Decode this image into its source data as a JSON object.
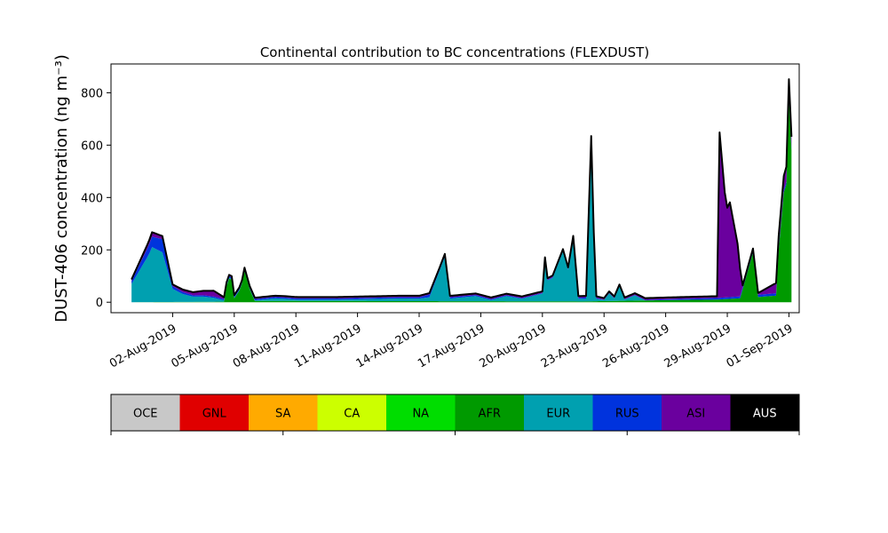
{
  "chart_data": {
    "type": "area",
    "title": "Continental contribution to BC concentrations (FLEXDUST)",
    "ylabel": "DUST-406 concentration (ng m⁻³)",
    "xlabel": "",
    "xlim": [
      "2019-07-30",
      "2019-09-01T12:00"
    ],
    "ylim": [
      -40,
      910
    ],
    "y_ticks": [
      0,
      200,
      400,
      600,
      800
    ],
    "x_ticks": [
      "2019-08-02",
      "2019-08-05",
      "2019-08-08",
      "2019-08-11",
      "2019-08-14",
      "2019-08-17",
      "2019-08-20",
      "2019-08-23",
      "2019-08-26",
      "2019-08-29",
      "2019-09-01"
    ],
    "x_tick_labels": [
      "02-Aug-2019",
      "05-Aug-2019",
      "08-Aug-2019",
      "11-Aug-2019",
      "14-Aug-2019",
      "17-Aug-2019",
      "20-Aug-2019",
      "23-Aug-2019",
      "26-Aug-2019",
      "29-Aug-2019",
      "01-Sep-2019"
    ],
    "stack_order": [
      "OCE",
      "GNL",
      "SA",
      "CA",
      "NA",
      "AFR",
      "EUR",
      "RUS",
      "ASI",
      "AUS"
    ],
    "series": [
      {
        "name": "AFR",
        "color": "#009a00",
        "points": [
          [
            "2019-07-31",
            0
          ],
          [
            "2019-08-04T12",
            2
          ],
          [
            "2019-08-04T15",
            60
          ],
          [
            "2019-08-04T20",
            110
          ],
          [
            "2019-08-05T00",
            15
          ],
          [
            "2019-08-05T08",
            55
          ],
          [
            "2019-08-05T12",
            120
          ],
          [
            "2019-08-05T18",
            50
          ],
          [
            "2019-08-06",
            5
          ],
          [
            "2019-08-22",
            3
          ],
          [
            "2019-08-26",
            8
          ],
          [
            "2019-08-28T12",
            10
          ],
          [
            "2019-08-29T15",
            15
          ],
          [
            "2019-08-30T06",
            190
          ],
          [
            "2019-08-30T12",
            20
          ],
          [
            "2019-08-31T09",
            25
          ],
          [
            "2019-08-31T12",
            200
          ],
          [
            "2019-08-31T18",
            420
          ],
          [
            "2019-08-31T21",
            450
          ],
          [
            "2019-09-01",
            780
          ],
          [
            "2019-09-01T03",
            580
          ]
        ]
      },
      {
        "name": "EUR",
        "color": "#00a0b0",
        "points": [
          [
            "2019-07-31",
            70
          ],
          [
            "2019-07-31T20",
            180
          ],
          [
            "2019-08-01",
            210
          ],
          [
            "2019-08-01T12",
            190
          ],
          [
            "2019-08-02",
            50
          ],
          [
            "2019-08-02T12",
            30
          ],
          [
            "2019-08-03",
            20
          ],
          [
            "2019-08-03T12",
            20
          ],
          [
            "2019-08-04",
            15
          ],
          [
            "2019-08-04T12",
            5
          ],
          [
            "2019-08-05",
            2
          ],
          [
            "2019-08-06",
            2
          ],
          [
            "2019-08-07",
            10
          ],
          [
            "2019-08-07T12",
            8
          ],
          [
            "2019-08-08",
            5
          ],
          [
            "2019-08-10",
            5
          ],
          [
            "2019-08-13",
            10
          ],
          [
            "2019-08-14",
            10
          ],
          [
            "2019-08-14T12",
            15
          ],
          [
            "2019-08-15T06",
            170
          ],
          [
            "2019-08-15T12",
            10
          ],
          [
            "2019-08-16T18",
            20
          ],
          [
            "2019-08-17T12",
            5
          ],
          [
            "2019-08-18T06",
            20
          ],
          [
            "2019-08-19",
            10
          ],
          [
            "2019-08-20",
            30
          ],
          [
            "2019-08-20T03",
            160
          ],
          [
            "2019-08-20T06",
            80
          ],
          [
            "2019-08-20T12",
            90
          ],
          [
            "2019-08-21",
            190
          ],
          [
            "2019-08-21T06",
            120
          ],
          [
            "2019-08-21T12",
            240
          ],
          [
            "2019-08-21T18",
            10
          ],
          [
            "2019-08-22T03",
            10
          ],
          [
            "2019-08-22T09",
            620
          ],
          [
            "2019-08-22T14",
            10
          ],
          [
            "2019-08-23",
            5
          ],
          [
            "2019-08-23T06",
            30
          ],
          [
            "2019-08-23T12",
            10
          ],
          [
            "2019-08-23T18",
            55
          ],
          [
            "2019-08-24",
            5
          ],
          [
            "2019-08-24T12",
            20
          ],
          [
            "2019-08-25",
            0
          ],
          [
            "2019-09-01T06",
            0
          ]
        ]
      },
      {
        "name": "RUS",
        "color": "#0033dd",
        "points": [
          [
            "2019-07-31",
            10
          ],
          [
            "2019-08-01",
            40
          ],
          [
            "2019-08-01T12",
            50
          ],
          [
            "2019-08-02",
            10
          ],
          [
            "2019-08-03",
            5
          ],
          [
            "2019-08-14",
            5
          ],
          [
            "2019-08-14T12",
            10
          ],
          [
            "2019-08-15",
            5
          ],
          [
            "2019-08-20",
            2
          ],
          [
            "2019-08-22T09",
            5
          ],
          [
            "2019-08-23",
            0
          ],
          [
            "2019-09-01",
            10
          ]
        ]
      },
      {
        "name": "ASI",
        "color": "#6a009e",
        "points": [
          [
            "2019-07-31",
            5
          ],
          [
            "2019-08-01",
            15
          ],
          [
            "2019-08-02",
            5
          ],
          [
            "2019-08-03",
            10
          ],
          [
            "2019-08-03T12",
            15
          ],
          [
            "2019-08-04",
            20
          ],
          [
            "2019-08-04T12",
            5
          ],
          [
            "2019-08-05",
            3
          ],
          [
            "2019-08-28T12",
            5
          ],
          [
            "2019-08-28T15",
            630
          ],
          [
            "2019-08-28T21",
            400
          ],
          [
            "2019-08-29",
            340
          ],
          [
            "2019-08-29T03",
            360
          ],
          [
            "2019-08-29T12",
            200
          ],
          [
            "2019-08-29T18",
            5
          ],
          [
            "2019-08-30T12",
            5
          ],
          [
            "2019-09-01",
            60
          ],
          [
            "2019-09-01T03",
            40
          ]
        ]
      },
      {
        "name": "AUS",
        "color": "#000000",
        "points": [
          [
            "2019-07-31",
            2
          ],
          [
            "2019-09-01T03",
            2
          ]
        ]
      }
    ],
    "total_line_color": "#000000",
    "colorbar": {
      "labels": [
        "OCE",
        "GNL",
        "SA",
        "CA",
        "NA",
        "AFR",
        "EUR",
        "RUS",
        "ASI",
        "AUS"
      ],
      "colors": [
        "#c8c8c8",
        "#e00000",
        "#ffaa00",
        "#ccff00",
        "#00dd00",
        "#009a00",
        "#00a0b0",
        "#0033dd",
        "#6a009e",
        "#000000"
      ],
      "text_colors": [
        "#000000",
        "#000000",
        "#000000",
        "#000000",
        "#000000",
        "#000000",
        "#000000",
        "#000000",
        "#000000",
        "#ffffff"
      ]
    }
  }
}
